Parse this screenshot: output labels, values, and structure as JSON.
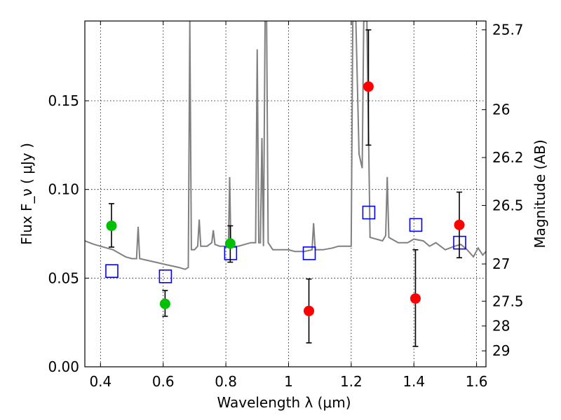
{
  "chart_data": {
    "type": "scatter",
    "title": "",
    "xlabel": "Wavelength  λ (μm)",
    "ylabel": "Flux  F_ν  ( μJy )",
    "y2label": "Magnitude (AB)",
    "xlim": [
      0.35,
      1.63
    ],
    "ylim": [
      0.0,
      0.195
    ],
    "xticks": [
      0.4,
      0.6,
      0.8,
      1.0,
      1.2,
      1.4,
      1.6
    ],
    "xtick_labels": [
      "0.4",
      "0.6",
      "0.8",
      "1",
      "1.2",
      "1.4",
      "1.6"
    ],
    "yticks": [
      0.0,
      0.05,
      0.1,
      0.15
    ],
    "ytick_labels": [
      "0.00",
      "0.05",
      "0.10",
      "0.15"
    ],
    "y2ticks": [
      {
        "label": "25.7",
        "flux": 0.19
      },
      {
        "label": "26",
        "flux": 0.145
      },
      {
        "label": "26.2",
        "flux": 0.118
      },
      {
        "label": "26.5",
        "flux": 0.091
      },
      {
        "label": "27",
        "flux": 0.058
      },
      {
        "label": "27.5",
        "flux": 0.037
      },
      {
        "label": "28",
        "flux": 0.023
      },
      {
        "label": "29",
        "flux": 0.009
      }
    ],
    "grid": true,
    "colors": {
      "spectrum": "#808080",
      "green": "#00c000",
      "red": "#ff0000",
      "model": "#0000ff",
      "errorbar": "#000000"
    },
    "series": [
      {
        "marker": "circle",
        "color": "#00c000",
        "points": [
          {
            "x": 0.435,
            "y": 0.0795,
            "err_lo": 0.0675,
            "err_hi": 0.092
          },
          {
            "x": 0.606,
            "y": 0.0355,
            "err_lo": 0.0285,
            "err_hi": 0.043
          },
          {
            "x": 0.814,
            "y": 0.0695,
            "err_lo": 0.059,
            "err_hi": 0.0795
          }
        ]
      },
      {
        "marker": "circle",
        "color": "#ff0000",
        "points": [
          {
            "x": 1.065,
            "y": 0.0315,
            "err_lo": 0.0135,
            "err_hi": 0.0495
          },
          {
            "x": 1.255,
            "y": 0.158,
            "err_lo": 0.125,
            "err_hi": 0.19
          },
          {
            "x": 1.405,
            "y": 0.0385,
            "err_lo": 0.0115,
            "err_hi": 0.066
          },
          {
            "x": 1.545,
            "y": 0.08,
            "err_lo": 0.0615,
            "err_hi": 0.0985
          }
        ]
      },
      {
        "marker": "open-square",
        "color": "#0000ff",
        "points": [
          {
            "x": 0.435,
            "y": 0.054
          },
          {
            "x": 0.606,
            "y": 0.051
          },
          {
            "x": 0.814,
            "y": 0.064
          },
          {
            "x": 1.065,
            "y": 0.064
          },
          {
            "x": 1.255,
            "y": 0.087
          },
          {
            "x": 1.405,
            "y": 0.08
          },
          {
            "x": 1.545,
            "y": 0.07
          }
        ]
      },
      {
        "marker": "line",
        "color": "#808080",
        "points": [
          [
            0.35,
            0.071
          ],
          [
            0.365,
            0.07
          ],
          [
            0.38,
            0.069
          ],
          [
            0.4,
            0.068
          ],
          [
            0.42,
            0.067
          ],
          [
            0.44,
            0.066
          ],
          [
            0.46,
            0.064
          ],
          [
            0.48,
            0.062
          ],
          [
            0.5,
            0.061
          ],
          [
            0.515,
            0.061
          ],
          [
            0.52,
            0.079
          ],
          [
            0.525,
            0.061
          ],
          [
            0.55,
            0.06
          ],
          [
            0.575,
            0.059
          ],
          [
            0.6,
            0.058
          ],
          [
            0.625,
            0.057
          ],
          [
            0.65,
            0.056
          ],
          [
            0.67,
            0.055
          ],
          [
            0.68,
            0.056
          ],
          [
            0.685,
            0.195
          ],
          [
            0.69,
            0.066
          ],
          [
            0.7,
            0.066
          ],
          [
            0.71,
            0.068
          ],
          [
            0.715,
            0.083
          ],
          [
            0.72,
            0.068
          ],
          [
            0.74,
            0.068
          ],
          [
            0.755,
            0.07
          ],
          [
            0.76,
            0.077
          ],
          [
            0.765,
            0.069
          ],
          [
            0.78,
            0.068
          ],
          [
            0.8,
            0.068
          ],
          [
            0.808,
            0.068
          ],
          [
            0.812,
            0.107
          ],
          [
            0.816,
            0.068
          ],
          [
            0.84,
            0.068
          ],
          [
            0.86,
            0.069
          ],
          [
            0.88,
            0.07
          ],
          [
            0.895,
            0.07
          ],
          [
            0.9,
            0.179
          ],
          [
            0.905,
            0.07
          ],
          [
            0.91,
            0.07
          ],
          [
            0.915,
            0.129
          ],
          [
            0.92,
            0.068
          ],
          [
            0.925,
            0.195
          ],
          [
            0.93,
            0.195
          ],
          [
            0.935,
            0.07
          ],
          [
            0.95,
            0.066
          ],
          [
            0.97,
            0.066
          ],
          [
            1.0,
            0.066
          ],
          [
            1.02,
            0.065
          ],
          [
            1.05,
            0.065
          ],
          [
            1.075,
            0.066
          ],
          [
            1.08,
            0.081
          ],
          [
            1.085,
            0.066
          ],
          [
            1.11,
            0.066
          ],
          [
            1.14,
            0.067
          ],
          [
            1.16,
            0.068
          ],
          [
            1.18,
            0.068
          ],
          [
            1.2,
            0.068
          ],
          [
            1.205,
            0.195
          ],
          [
            1.215,
            0.195
          ],
          [
            1.225,
            0.12
          ],
          [
            1.235,
            0.112
          ],
          [
            1.24,
            0.195
          ],
          [
            1.25,
            0.195
          ],
          [
            1.26,
            0.073
          ],
          [
            1.3,
            0.071
          ],
          [
            1.31,
            0.074
          ],
          [
            1.315,
            0.107
          ],
          [
            1.32,
            0.073
          ],
          [
            1.35,
            0.07
          ],
          [
            1.38,
            0.07
          ],
          [
            1.4,
            0.072
          ],
          [
            1.43,
            0.071
          ],
          [
            1.45,
            0.068
          ],
          [
            1.47,
            0.07
          ],
          [
            1.5,
            0.066
          ],
          [
            1.53,
            0.068
          ],
          [
            1.55,
            0.069
          ],
          [
            1.57,
            0.066
          ],
          [
            1.59,
            0.062
          ],
          [
            1.605,
            0.067
          ],
          [
            1.62,
            0.063
          ],
          [
            1.63,
            0.065
          ]
        ]
      }
    ]
  }
}
